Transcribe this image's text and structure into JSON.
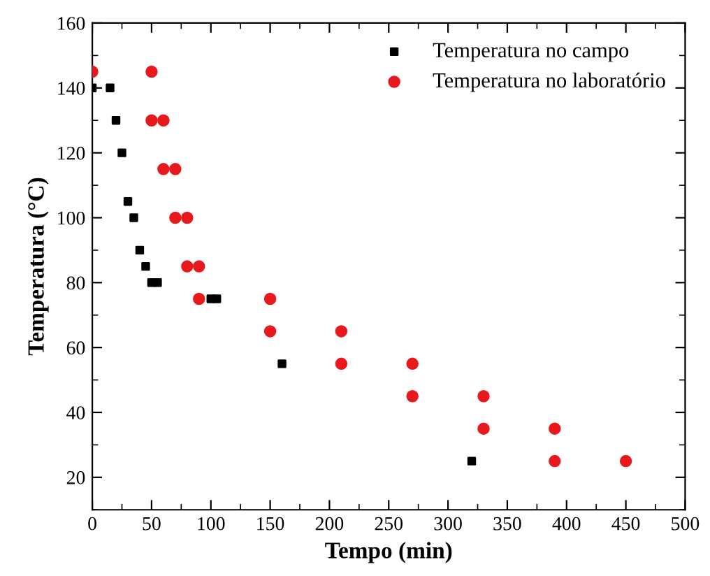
{
  "chart_data": {
    "type": "scatter",
    "xlabel": "Tempo (min)",
    "ylabel": "Temperatura (°C)",
    "xlim": [
      0,
      500
    ],
    "ylim": [
      10,
      160
    ],
    "xticks": [
      0,
      50,
      100,
      150,
      200,
      250,
      300,
      350,
      400,
      450,
      500
    ],
    "yticks": [
      20,
      40,
      60,
      80,
      100,
      120,
      140,
      160
    ],
    "grid": false,
    "legend": "top right",
    "series": [
      {
        "name": "Temperatura no campo",
        "color": "#000000",
        "marker": "square",
        "x": [
          0,
          15,
          20,
          25,
          30,
          35,
          40,
          45,
          50,
          55,
          100,
          105,
          160,
          320
        ],
        "values": [
          140,
          140,
          130,
          120,
          105,
          100,
          90,
          85,
          80,
          80,
          75,
          75,
          55,
          25
        ]
      },
      {
        "name": "Temperatura no laboratório",
        "color": "#e8191c",
        "marker": "circle",
        "x": [
          0,
          50,
          50,
          60,
          60,
          70,
          70,
          80,
          80,
          90,
          90,
          150,
          150,
          210,
          210,
          270,
          270,
          330,
          330,
          390,
          390,
          450
        ],
        "values": [
          145,
          145,
          130,
          130,
          115,
          115,
          100,
          100,
          85,
          85,
          75,
          75,
          65,
          65,
          55,
          55,
          45,
          45,
          35,
          35,
          25,
          25
        ]
      }
    ]
  }
}
